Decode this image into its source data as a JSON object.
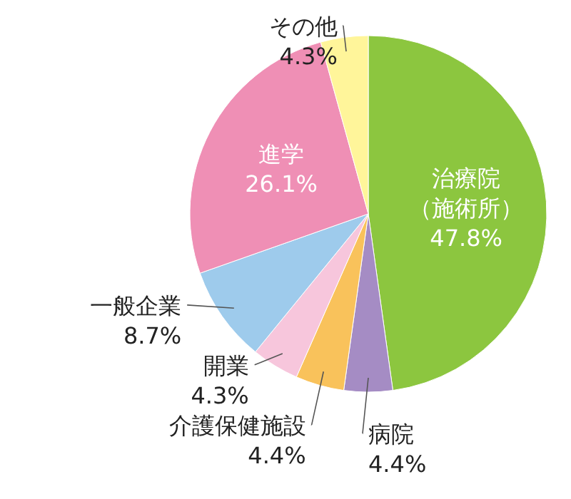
{
  "chart_data": {
    "type": "pie",
    "categories": [
      "治療院（施術所）",
      "病院",
      "介護保健施設",
      "開業",
      "一般企業",
      "進学",
      "その他"
    ],
    "values": [
      47.8,
      4.4,
      4.4,
      4.3,
      8.7,
      26.1,
      4.3
    ],
    "value_labels": [
      "47.8%",
      "4.4%",
      "4.4%",
      "4.3%",
      "8.7%",
      "26.1%",
      "4.3%"
    ],
    "colors": [
      "#8cc63f",
      "#a58cc4",
      "#f9c25b",
      "#f7c6dc",
      "#9ecbec",
      "#ef8fb5",
      "#fff59a"
    ]
  }
}
